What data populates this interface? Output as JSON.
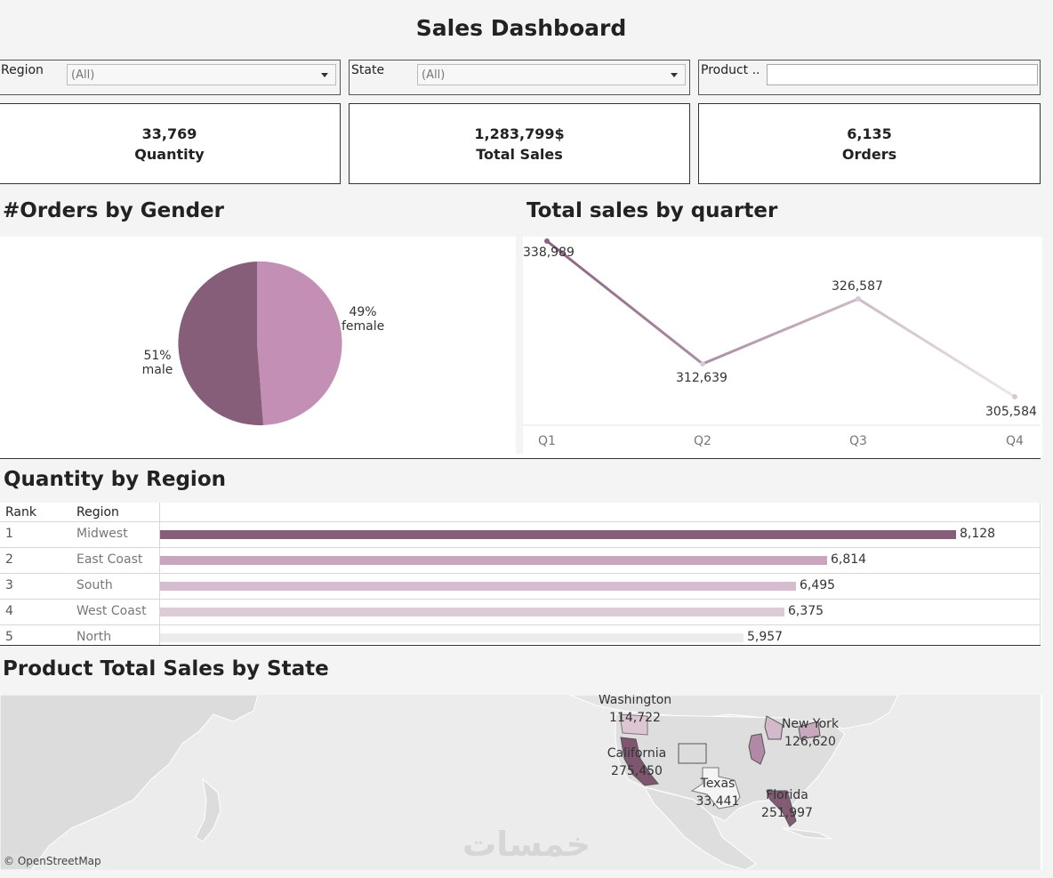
{
  "header": {
    "title": "Sales Dashboard"
  },
  "filters": {
    "region": {
      "label": "Region",
      "value": "(All)"
    },
    "state": {
      "label": "State",
      "value": "(All)"
    },
    "product": {
      "label": "Product ..",
      "value": ""
    }
  },
  "kpis": [
    {
      "value": "33,769",
      "label": "Quantity"
    },
    {
      "value": "1,283,799$",
      "label": "Total Sales"
    },
    {
      "value": "6,135",
      "label": "Orders"
    }
  ],
  "gender_chart": {
    "title": "#Orders by Gender",
    "slices": [
      {
        "name": "female",
        "pct_label": "49%",
        "value": 49,
        "color": "#c48fb4"
      },
      {
        "name": "male",
        "pct_label": "51%",
        "value": 51,
        "color": "#875e79"
      }
    ]
  },
  "quarter_chart": {
    "title": "Total sales by quarter",
    "color_start": "#8b6280",
    "color_end": "#ede6ea"
  },
  "region_table": {
    "title": "Quantity by Region",
    "headers": {
      "rank": "Rank",
      "region": "Region"
    },
    "max": 8128,
    "rows": [
      {
        "rank": "1",
        "region": "Midwest",
        "value": 8128,
        "label": "8,128",
        "color": "#875e79"
      },
      {
        "rank": "2",
        "region": "East Coast",
        "value": 6814,
        "label": "6,814",
        "color": "#c9a6bd"
      },
      {
        "rank": "3",
        "region": "South",
        "value": 6495,
        "label": "6,495",
        "color": "#d5bcce"
      },
      {
        "rank": "4",
        "region": "West Coast",
        "value": 6375,
        "label": "6,375",
        "color": "#dccbd6"
      },
      {
        "rank": "5",
        "region": "North",
        "value": 5957,
        "label": "5,957",
        "color": "#ececec"
      }
    ]
  },
  "map": {
    "title": "Product Total Sales by State",
    "attribution": "© OpenStreetMap",
    "watermark": "خمسات",
    "states": [
      {
        "name": "Washington",
        "value": "114,722"
      },
      {
        "name": "New York",
        "value": "126,620"
      },
      {
        "name": "California",
        "value": "275,450"
      },
      {
        "name": "Texas",
        "value": "33,441"
      },
      {
        "name": "Florida",
        "value": "251,997"
      }
    ]
  },
  "chart_data": {
    "type": "line",
    "title": "Total sales by quarter",
    "categories": [
      "Q1",
      "Q2",
      "Q3",
      "Q4"
    ],
    "values": [
      338989,
      312639,
      326587,
      305584
    ],
    "labels": [
      "338,989",
      "312,639",
      "326,587",
      "305,584"
    ],
    "ylim": [
      305584,
      338989
    ],
    "xlabel": "",
    "ylabel": ""
  }
}
